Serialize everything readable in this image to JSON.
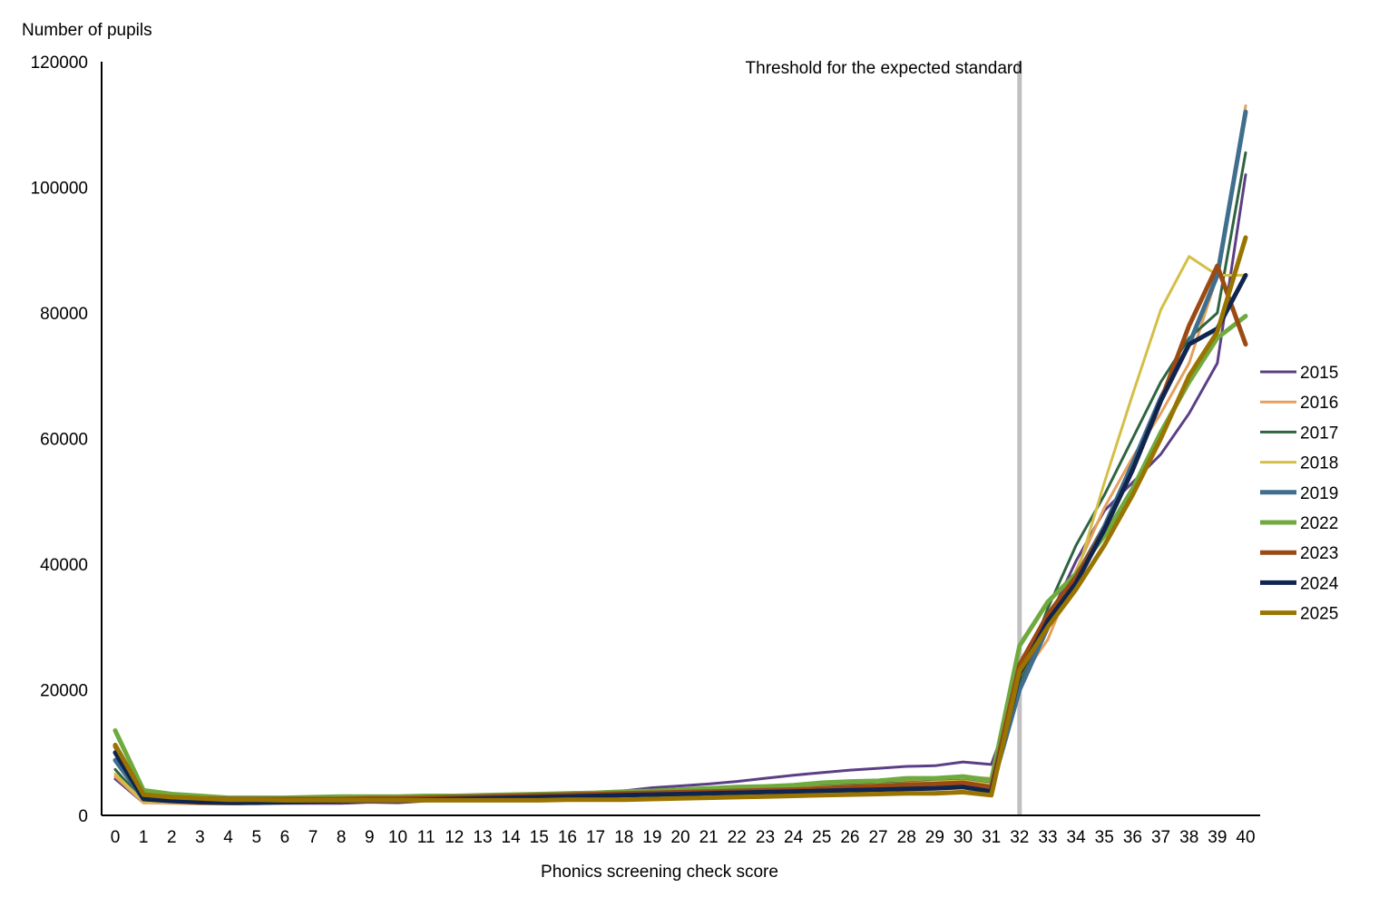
{
  "chart_data": {
    "type": "line",
    "ylabel": "Number  of pupils",
    "xlabel": "Phonics screening check score",
    "annotation": "Threshold for the expected standard",
    "threshold_x": 32,
    "ylim": [
      0,
      120000
    ],
    "yticks": [
      0,
      20000,
      40000,
      60000,
      80000,
      100000,
      120000
    ],
    "x": [
      0,
      1,
      2,
      3,
      4,
      5,
      6,
      7,
      8,
      9,
      10,
      11,
      12,
      13,
      14,
      15,
      16,
      17,
      18,
      19,
      20,
      21,
      22,
      23,
      24,
      25,
      26,
      27,
      28,
      29,
      30,
      31,
      32,
      33,
      34,
      35,
      36,
      37,
      38,
      39,
      40
    ],
    "legend_position": "right",
    "grid": false,
    "series": [
      {
        "name": "2015",
        "color": "#5b3f86",
        "width": 3,
        "values": [
          5800,
          2000,
          2100,
          2000,
          1800,
          1900,
          1900,
          1900,
          1900,
          2100,
          2000,
          2300,
          2600,
          2800,
          3000,
          3200,
          3400,
          3700,
          3900,
          4400,
          4700,
          5000,
          5400,
          5900,
          6400,
          6800,
          7200,
          7500,
          7800,
          7900,
          8500,
          8100,
          20500,
          31000,
          40500,
          48500,
          53000,
          57500,
          64000,
          72000,
          102000
        ]
      },
      {
        "name": "2016",
        "color": "#e5a05c",
        "width": 3,
        "values": [
          6200,
          2000,
          1900,
          1800,
          1800,
          1900,
          2000,
          2100,
          2200,
          2300,
          2400,
          2500,
          2600,
          2700,
          2800,
          2900,
          3100,
          3200,
          3400,
          3600,
          3800,
          4000,
          4200,
          4400,
          4600,
          4800,
          5000,
          5200,
          5400,
          5600,
          6100,
          5900,
          21500,
          28000,
          39000,
          49000,
          57000,
          64000,
          72000,
          86000,
          113000
        ]
      },
      {
        "name": "2017",
        "color": "#2f6440",
        "width": 3,
        "values": [
          7300,
          2300,
          2200,
          2100,
          2100,
          2200,
          2300,
          2400,
          2500,
          2600,
          2700,
          2800,
          2900,
          3000,
          3100,
          3200,
          3300,
          3400,
          3500,
          3700,
          3800,
          3900,
          4000,
          4200,
          4400,
          4600,
          4800,
          5000,
          5200,
          5400,
          5600,
          5000,
          21000,
          33000,
          43000,
          51000,
          60000,
          69000,
          76000,
          80000,
          105500
        ]
      },
      {
        "name": "2018",
        "color": "#d4bf46",
        "width": 3,
        "values": [
          6600,
          2200,
          2100,
          2000,
          2000,
          2100,
          2200,
          2300,
          2400,
          2500,
          2600,
          2700,
          2800,
          2900,
          3000,
          3100,
          3200,
          3300,
          3400,
          3600,
          3700,
          3800,
          3900,
          4100,
          4300,
          4500,
          4700,
          4900,
          5100,
          5300,
          5500,
          4900,
          22000,
          31000,
          38000,
          53000,
          67000,
          80500,
          89000,
          86000,
          86000
        ]
      },
      {
        "name": "2019",
        "color": "#3f6e8e",
        "width": 5,
        "values": [
          8800,
          2600,
          2400,
          2300,
          2200,
          2300,
          2300,
          2400,
          2500,
          2600,
          2700,
          2800,
          2900,
          3000,
          3100,
          3200,
          3300,
          3400,
          3500,
          3600,
          3700,
          3800,
          3900,
          4000,
          4100,
          4200,
          4300,
          4400,
          4500,
          4600,
          4800,
          4200,
          20000,
          30000,
          38000,
          46000,
          56000,
          66500,
          75000,
          86000,
          112000
        ]
      },
      {
        "name": "2022",
        "color": "#6faa3f",
        "width": 5,
        "values": [
          13500,
          4000,
          3400,
          3100,
          2800,
          2800,
          2800,
          2900,
          3000,
          3000,
          3000,
          3100,
          3100,
          3200,
          3300,
          3400,
          3500,
          3600,
          3800,
          3900,
          4100,
          4300,
          4500,
          4600,
          4800,
          5200,
          5400,
          5500,
          5900,
          5900,
          6200,
          5600,
          27000,
          34000,
          38500,
          44500,
          52000,
          61000,
          69000,
          76000,
          79500
        ]
      },
      {
        "name": "2023",
        "color": "#9c4a14",
        "width": 5,
        "values": [
          11000,
          3200,
          2900,
          2700,
          2600,
          2600,
          2600,
          2600,
          2600,
          2700,
          2700,
          2800,
          2900,
          3000,
          3100,
          3200,
          3300,
          3400,
          3500,
          3600,
          3700,
          3800,
          3900,
          4000,
          4100,
          4300,
          4500,
          4700,
          4900,
          5000,
          5200,
          4500,
          24000,
          32000,
          38000,
          45500,
          55000,
          66000,
          78000,
          87500,
          75000
        ]
      },
      {
        "name": "2024",
        "color": "#0f2550",
        "width": 5,
        "values": [
          10000,
          2600,
          2300,
          2100,
          2000,
          2000,
          2100,
          2200,
          2300,
          2400,
          2400,
          2500,
          2600,
          2700,
          2800,
          2900,
          3000,
          3100,
          3200,
          3300,
          3400,
          3500,
          3600,
          3700,
          3800,
          3900,
          4000,
          4100,
          4200,
          4300,
          4500,
          3800,
          22500,
          31000,
          37000,
          45500,
          55000,
          66000,
          75000,
          77500,
          86000
        ]
      },
      {
        "name": "2025",
        "color": "#9a7400",
        "width": 5,
        "values": [
          11200,
          3300,
          2900,
          2700,
          2500,
          2500,
          2400,
          2400,
          2400,
          2400,
          2400,
          2400,
          2400,
          2400,
          2400,
          2400,
          2500,
          2500,
          2500,
          2600,
          2700,
          2800,
          2900,
          3000,
          3100,
          3200,
          3300,
          3400,
          3500,
          3500,
          3700,
          3200,
          23000,
          30000,
          36000,
          43000,
          51000,
          60000,
          70000,
          77000,
          92000
        ]
      }
    ]
  }
}
